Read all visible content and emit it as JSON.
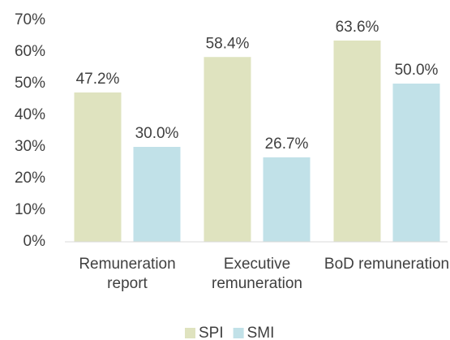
{
  "chart_data": {
    "type": "bar",
    "categories": [
      "Remuneration report",
      "Executive remuneration",
      "BoD remuneration"
    ],
    "series": [
      {
        "name": "SPI",
        "color": "#dfe3bf",
        "values": [
          47.2,
          58.4,
          63.6
        ],
        "value_labels": [
          "47.2%",
          "58.4%",
          "63.6%"
        ]
      },
      {
        "name": "SMI",
        "color": "#c1e1e8",
        "values": [
          30.0,
          26.7,
          50.0
        ],
        "value_labels": [
          "30.0%",
          "26.7%",
          "50.0%"
        ]
      }
    ],
    "ylim": [
      0,
      70
    ],
    "yticks": [
      {
        "value": 0,
        "label": "0%"
      },
      {
        "value": 10,
        "label": "10%"
      },
      {
        "value": 20,
        "label": "20%"
      },
      {
        "value": 30,
        "label": "30%"
      },
      {
        "value": 40,
        "label": "40%"
      },
      {
        "value": 50,
        "label": "50%"
      },
      {
        "value": 60,
        "label": "60%"
      },
      {
        "value": 70,
        "label": "70%"
      }
    ],
    "grid": false,
    "legend": "bottom"
  }
}
